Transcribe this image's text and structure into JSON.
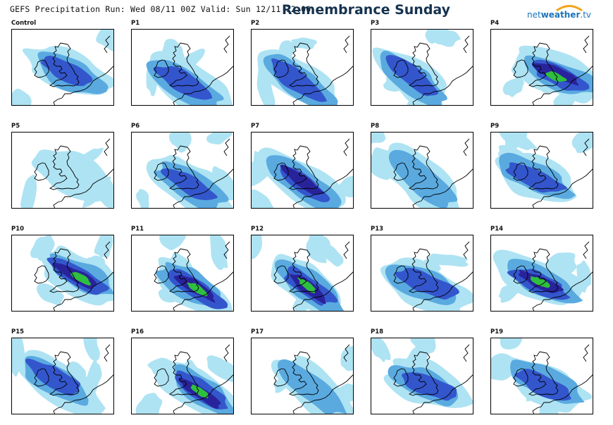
{
  "header": {
    "run_info": "GEFS Precipitation Run: Wed 08/11 00Z Valid: Sun 12/11 12:00",
    "title": "Remembrance Sunday",
    "brand_prefix": "net",
    "brand_mid": "weather",
    "brand_suffix": ".tv"
  },
  "colors": {
    "light": "#aee3f3",
    "medium": "#5aaae0",
    "strong": "#3456cc",
    "heavy": "#29239b",
    "extreme": "#2fbf3f",
    "coast": "#000000",
    "brand_blue": "#1b74b8",
    "brand_orange": "#f3a21a"
  },
  "panels": [
    {
      "label": "Control",
      "intensity": "strong"
    },
    {
      "label": "P1",
      "intensity": "strong"
    },
    {
      "label": "P2",
      "intensity": "strong"
    },
    {
      "label": "P3",
      "intensity": "strong"
    },
    {
      "label": "P4",
      "intensity": "extreme"
    },
    {
      "label": "P5",
      "intensity": "light"
    },
    {
      "label": "P6",
      "intensity": "strong"
    },
    {
      "label": "P7",
      "intensity": "heavy"
    },
    {
      "label": "P8",
      "intensity": "medium"
    },
    {
      "label": "P9",
      "intensity": "strong"
    },
    {
      "label": "P10",
      "intensity": "extreme"
    },
    {
      "label": "P11",
      "intensity": "extreme"
    },
    {
      "label": "P12",
      "intensity": "extreme"
    },
    {
      "label": "P13",
      "intensity": "strong"
    },
    {
      "label": "P14",
      "intensity": "extreme"
    },
    {
      "label": "P15",
      "intensity": "strong"
    },
    {
      "label": "P16",
      "intensity": "extreme"
    },
    {
      "label": "P17",
      "intensity": "medium"
    },
    {
      "label": "P18",
      "intensity": "strong"
    },
    {
      "label": "P19",
      "intensity": "strong"
    }
  ]
}
